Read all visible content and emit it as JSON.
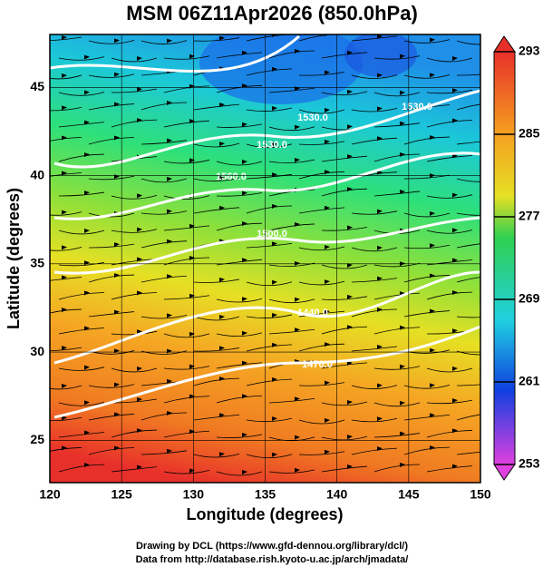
{
  "title": "MSM 06Z11Apr2026 (850.0hPa)",
  "xaxis": {
    "label": "Longitude (degrees)",
    "lim": [
      120,
      150
    ],
    "ticks": [
      120,
      125,
      130,
      135,
      140,
      145,
      150
    ]
  },
  "yaxis": {
    "label": "Latitude  (degrees)",
    "lim": [
      22.6,
      48
    ],
    "ticks": [
      25,
      30,
      35,
      40,
      45
    ]
  },
  "colorbar": {
    "lim": [
      253,
      293
    ],
    "ticks": [
      253,
      261,
      269,
      277,
      285,
      293
    ]
  },
  "contour_labels": [
    "1530.0",
    "1530.0",
    "1560.0",
    "1500.0",
    "1440.0",
    "1470.0",
    "1530.0"
  ],
  "credits": [
    "Drawing by DCL (https://www.gfd-dennou.org/library/dcl/)",
    "Data from http://database.rish.kyoto-u.ac.jp/arch/jmadata/"
  ]
}
